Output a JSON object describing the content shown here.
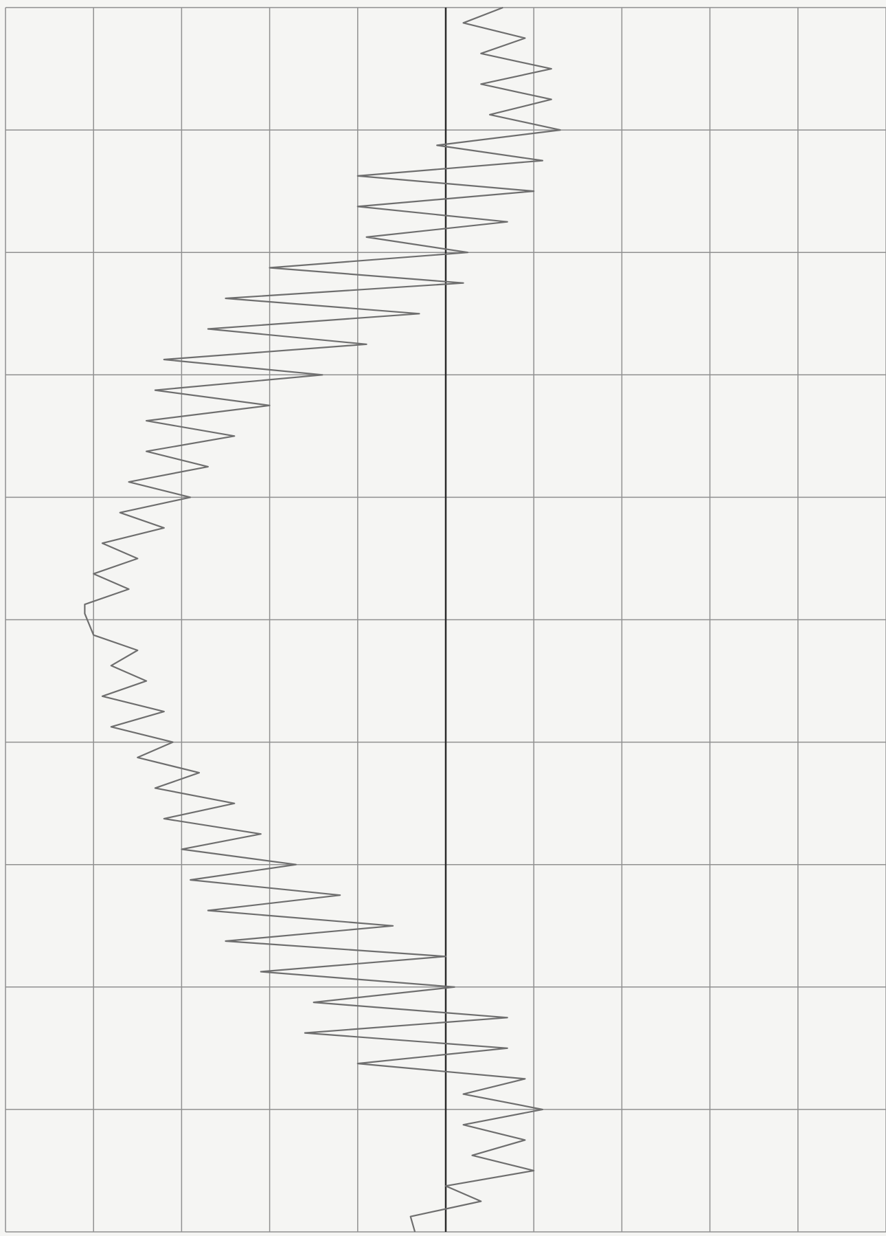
{
  "chart_data": {
    "type": "line",
    "orientation": "vertical",
    "color": "#6e6e6e",
    "grid": true,
    "grid_color": "#8f8f8f",
    "zero_line_color": "#2a2a2a",
    "x": [
      0,
      0.125,
      0.25,
      0.375,
      0.5,
      0.625,
      0.75,
      0.875,
      1.0,
      1.125,
      1.25,
      1.375,
      1.5,
      1.625,
      1.75,
      1.875,
      2.0,
      2.125,
      2.25,
      2.375,
      2.5,
      2.625,
      2.75,
      2.875,
      3.0,
      3.125,
      3.25,
      3.375,
      3.5,
      3.625,
      3.75,
      3.875,
      4.0,
      4.125,
      4.25,
      4.375,
      4.5,
      4.625,
      4.75,
      4.875,
      4.95,
      5.125,
      5.25,
      5.375,
      5.5,
      5.625,
      5.75,
      5.875,
      6.0,
      6.125,
      6.25,
      6.375,
      6.5,
      6.625,
      6.75,
      6.875,
      7.0,
      7.125,
      7.25,
      7.375,
      7.5,
      7.625,
      7.75,
      7.875,
      8.0,
      8.125,
      8.25,
      8.375,
      8.5,
      8.625,
      8.75,
      8.875,
      9.0,
      9.125,
      9.25,
      9.375,
      9.5,
      9.625,
      9.75,
      9.875,
      10.0
    ],
    "values": [
      0.65,
      0.2,
      0.9,
      0.4,
      1.2,
      0.4,
      1.2,
      0.5,
      1.3,
      -0.1,
      1.1,
      -1.0,
      1.0,
      -1.0,
      0.7,
      -0.9,
      0.25,
      -2.0,
      0.2,
      -2.5,
      -0.3,
      -2.7,
      -0.9,
      -3.2,
      -1.4,
      -3.3,
      -2.0,
      -3.4,
      -2.4,
      -3.4,
      -2.7,
      -3.6,
      -2.9,
      -3.7,
      -3.2,
      -3.9,
      -3.5,
      -4.0,
      -3.6,
      -4.1,
      -4.1,
      -4.0,
      -3.5,
      -3.8,
      -3.4,
      -3.9,
      -3.2,
      -3.8,
      -3.1,
      -3.5,
      -2.8,
      -3.3,
      -2.4,
      -3.2,
      -2.1,
      -3.0,
      -1.7,
      -2.9,
      -1.2,
      -2.7,
      -0.6,
      -2.5,
      0,
      -2.1,
      0.1,
      -1.5,
      0.7,
      -1.6,
      0.7,
      -1.0,
      0.9,
      0.2,
      1.1,
      0.2,
      0.9,
      0.3,
      1.0,
      0,
      0.4,
      -0.4,
      -0.35
    ],
    "xlim": [
      0,
      10
    ],
    "xticks": [
      0,
      1,
      2,
      3,
      4,
      5,
      6,
      7,
      8,
      9,
      10
    ],
    "ylim": [
      -5,
      5
    ],
    "yticks": [
      -5,
      -4,
      -3,
      -2,
      -1,
      0,
      1,
      2,
      3,
      4,
      5
    ]
  }
}
